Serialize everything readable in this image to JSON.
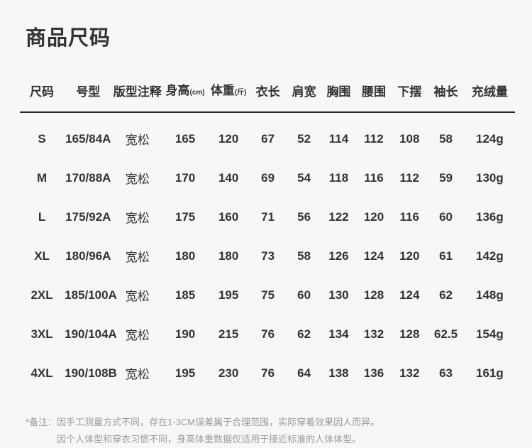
{
  "chart_data": {
    "type": "table",
    "title": "商品尺码",
    "columns": [
      {
        "label": "尺码",
        "unit": ""
      },
      {
        "label": "号型",
        "unit": ""
      },
      {
        "label": "版型注释",
        "unit": ""
      },
      {
        "label": "身高",
        "unit": "(cm)"
      },
      {
        "label": "体重",
        "unit": "(斤)"
      },
      {
        "label": "衣长",
        "unit": ""
      },
      {
        "label": "肩宽",
        "unit": ""
      },
      {
        "label": "胸围",
        "unit": ""
      },
      {
        "label": "腰围",
        "unit": ""
      },
      {
        "label": "下摆",
        "unit": ""
      },
      {
        "label": "袖长",
        "unit": ""
      },
      {
        "label": "充绒量",
        "unit": ""
      }
    ],
    "rows": [
      [
        "S",
        "165/84A",
        "宽松",
        "165",
        "120",
        "67",
        "52",
        "114",
        "112",
        "108",
        "58",
        "124g"
      ],
      [
        "M",
        "170/88A",
        "宽松",
        "170",
        "140",
        "69",
        "54",
        "118",
        "116",
        "112",
        "59",
        "130g"
      ],
      [
        "L",
        "175/92A",
        "宽松",
        "175",
        "160",
        "71",
        "56",
        "122",
        "120",
        "116",
        "60",
        "136g"
      ],
      [
        "XL",
        "180/96A",
        "宽松",
        "180",
        "180",
        "73",
        "58",
        "126",
        "124",
        "120",
        "61",
        "142g"
      ],
      [
        "2XL",
        "185/100A",
        "宽松",
        "185",
        "195",
        "75",
        "60",
        "130",
        "128",
        "124",
        "62",
        "148g"
      ],
      [
        "3XL",
        "190/104A",
        "宽松",
        "190",
        "215",
        "76",
        "62",
        "134",
        "132",
        "128",
        "62.5",
        "154g"
      ],
      [
        "4XL",
        "190/108B",
        "宽松",
        "195",
        "230",
        "76",
        "64",
        "138",
        "136",
        "132",
        "63",
        "161g"
      ]
    ],
    "column_widths_pct": [
      8.9,
      9.8,
      10.1,
      9.2,
      8.3,
      7.6,
      7.0,
      7.0,
      7.2,
      7.2,
      7.5,
      10.2
    ]
  },
  "footnote": {
    "label": "*备注：",
    "line1": "因手工测量方式不同，存在1-3CM误差属于合理范围，实际穿着效果因人而异。",
    "line2": "因个人体型和穿衣习惯不同，身高体重数据仅适用于接近标准的人体体型。"
  },
  "colors": {
    "background": "#f7f7f7",
    "text": "#333333",
    "header_line": "#2b2b2b",
    "footnote_text": "#9b9b9b"
  }
}
